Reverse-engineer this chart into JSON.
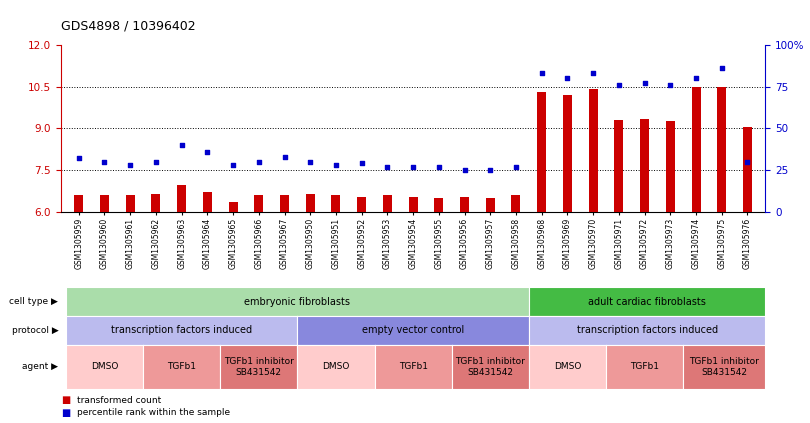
{
  "title": "GDS4898 / 10396402",
  "samples": [
    "GSM1305959",
    "GSM1305960",
    "GSM1305961",
    "GSM1305962",
    "GSM1305963",
    "GSM1305964",
    "GSM1305965",
    "GSM1305966",
    "GSM1305967",
    "GSM1305950",
    "GSM1305951",
    "GSM1305952",
    "GSM1305953",
    "GSM1305954",
    "GSM1305955",
    "GSM1305956",
    "GSM1305957",
    "GSM1305958",
    "GSM1305968",
    "GSM1305969",
    "GSM1305970",
    "GSM1305971",
    "GSM1305972",
    "GSM1305973",
    "GSM1305974",
    "GSM1305975",
    "GSM1305976"
  ],
  "bar_values": [
    6.6,
    6.6,
    6.6,
    6.65,
    6.95,
    6.7,
    6.35,
    6.6,
    6.6,
    6.65,
    6.6,
    6.55,
    6.6,
    6.55,
    6.5,
    6.55,
    6.5,
    6.6,
    10.3,
    10.2,
    10.4,
    9.3,
    9.35,
    9.25,
    10.5,
    10.5,
    9.05
  ],
  "scatter_values": [
    32,
    30,
    28,
    30,
    40,
    36,
    28,
    30,
    33,
    30,
    28,
    29,
    27,
    27,
    27,
    25,
    25,
    27,
    83,
    80,
    83,
    76,
    77,
    76,
    80,
    86,
    30
  ],
  "ylim_left": [
    6,
    12
  ],
  "ylim_right": [
    0,
    100
  ],
  "yticks_left": [
    6,
    7.5,
    9,
    10.5,
    12
  ],
  "yticks_right": [
    0,
    25,
    50,
    75,
    100
  ],
  "ytick_labels_right": [
    "0",
    "25",
    "50",
    "75",
    "100%"
  ],
  "bar_color": "#cc0000",
  "scatter_color": "#0000cc",
  "cell_type_row": {
    "embryonic": {
      "label": "embryonic fibroblasts",
      "start": 0,
      "end": 18,
      "color": "#aaddaa"
    },
    "adult": {
      "label": "adult cardiac fibroblasts",
      "start": 18,
      "end": 27,
      "color": "#44bb44"
    }
  },
  "protocol_row": {
    "tfi1": {
      "label": "transcription factors induced",
      "start": 0,
      "end": 9,
      "color": "#bbbbee"
    },
    "evc": {
      "label": "empty vector control",
      "start": 9,
      "end": 18,
      "color": "#8888dd"
    },
    "tfi2": {
      "label": "transcription factors induced",
      "start": 18,
      "end": 27,
      "color": "#bbbbee"
    }
  },
  "agent_row": {
    "groups": [
      {
        "label": "DMSO",
        "start": 0,
        "end": 3,
        "color": "#ffcccc"
      },
      {
        "label": "TGFb1",
        "start": 3,
        "end": 6,
        "color": "#ee9999"
      },
      {
        "label": "TGFb1 inhibitor\nSB431542",
        "start": 6,
        "end": 9,
        "color": "#dd7777"
      },
      {
        "label": "DMSO",
        "start": 9,
        "end": 12,
        "color": "#ffcccc"
      },
      {
        "label": "TGFb1",
        "start": 12,
        "end": 15,
        "color": "#ee9999"
      },
      {
        "label": "TGFb1 inhibitor\nSB431542",
        "start": 15,
        "end": 18,
        "color": "#dd7777"
      },
      {
        "label": "DMSO",
        "start": 18,
        "end": 21,
        "color": "#ffcccc"
      },
      {
        "label": "TGFb1",
        "start": 21,
        "end": 24,
        "color": "#ee9999"
      },
      {
        "label": "TGFb1 inhibitor\nSB431542",
        "start": 24,
        "end": 27,
        "color": "#dd7777"
      }
    ]
  },
  "legend_bar_label": "transformed count",
  "legend_scatter_label": "percentile rank within the sample",
  "row_labels": [
    "cell type",
    "protocol",
    "agent"
  ]
}
